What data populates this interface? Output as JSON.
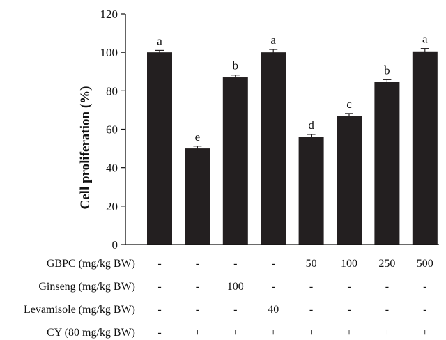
{
  "chart_data": {
    "type": "bar",
    "ylabel": "Cell proliferation (%)",
    "xlabel": "",
    "ylim": [
      0,
      120
    ],
    "yticks": [
      "0",
      "20",
      "40",
      "60",
      "80",
      "100",
      "120"
    ],
    "grid": false,
    "bar_color": "#231f20",
    "values": [
      100,
      50,
      87,
      100,
      56,
      67,
      84.5,
      100.5
    ],
    "errors": [
      1,
      1.2,
      1.2,
      1.5,
      1.3,
      1.2,
      1.3,
      1.5
    ],
    "significance": [
      "a",
      "e",
      "b",
      "a",
      "d",
      "c",
      "b",
      "a"
    ],
    "treatment_rows": [
      {
        "label": "GBPC (mg/kg BW)",
        "values": [
          "-",
          "-",
          "-",
          "-",
          "50",
          "100",
          "250",
          "500"
        ]
      },
      {
        "label": "Ginseng (mg/kg BW)",
        "values": [
          "-",
          "-",
          "100",
          "-",
          "-",
          "-",
          "-",
          "-"
        ]
      },
      {
        "label": "Levamisole (mg/kg BW)",
        "values": [
          "-",
          "-",
          "-",
          "40",
          "-",
          "-",
          "-",
          "-"
        ]
      },
      {
        "label": "CY (80 mg/kg BW)",
        "values": [
          "-",
          "+",
          "+",
          "+",
          "+",
          "+",
          "+",
          "+"
        ]
      }
    ]
  }
}
